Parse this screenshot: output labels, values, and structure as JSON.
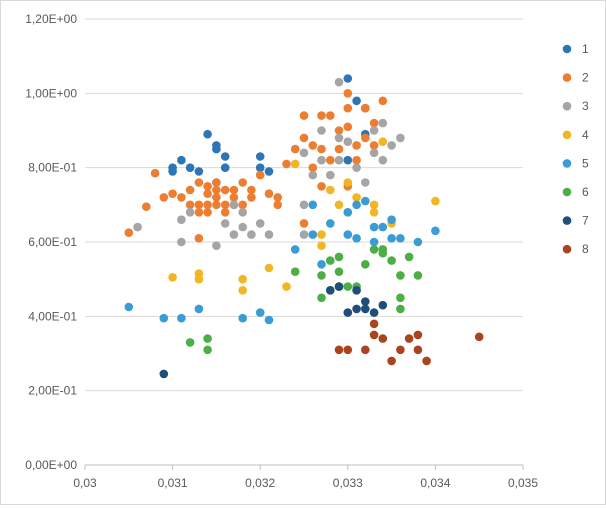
{
  "chart_data": {
    "type": "scatter",
    "title": "",
    "xlabel": "",
    "ylabel": "",
    "xlim": [
      0.03,
      0.035
    ],
    "ylim": [
      0.0,
      1.2
    ],
    "x_ticks": [
      0.03,
      0.031,
      0.032,
      0.033,
      0.034,
      0.035
    ],
    "x_tick_labels": [
      "0,03",
      "0,031",
      "0,032",
      "0,033",
      "0,034",
      "0,035"
    ],
    "y_ticks": [
      0.0,
      0.2,
      0.4,
      0.6,
      0.8,
      1.0,
      1.2
    ],
    "y_tick_labels": [
      "0,00E+00",
      "2,00E-01",
      "4,00E-01",
      "6,00E-01",
      "8,00E-01",
      "1,00E+00",
      "1,20E+00"
    ],
    "grid": "horizontal",
    "legend_position": "right",
    "series": [
      {
        "name": "1",
        "color": "#2e75b6",
        "points": [
          [
            0.031,
            0.79
          ],
          [
            0.031,
            0.8
          ],
          [
            0.0311,
            0.82
          ],
          [
            0.0312,
            0.8
          ],
          [
            0.0313,
            0.79
          ],
          [
            0.0314,
            0.89
          ],
          [
            0.0315,
            0.86
          ],
          [
            0.0315,
            0.85
          ],
          [
            0.0316,
            0.83
          ],
          [
            0.0316,
            0.8
          ],
          [
            0.0315,
            0.76
          ],
          [
            0.032,
            0.83
          ],
          [
            0.032,
            0.8
          ],
          [
            0.0321,
            0.79
          ],
          [
            0.033,
            1.04
          ],
          [
            0.0331,
            0.98
          ],
          [
            0.0332,
            0.96
          ],
          [
            0.0332,
            0.89
          ],
          [
            0.033,
            0.82
          ]
        ]
      },
      {
        "name": "2",
        "color": "#ed7d31",
        "points": [
          [
            0.0305,
            0.625
          ],
          [
            0.0307,
            0.695
          ],
          [
            0.0308,
            0.785
          ],
          [
            0.0309,
            0.72
          ],
          [
            0.031,
            0.73
          ],
          [
            0.0311,
            0.72
          ],
          [
            0.0312,
            0.7
          ],
          [
            0.0312,
            0.74
          ],
          [
            0.0313,
            0.76
          ],
          [
            0.0313,
            0.7
          ],
          [
            0.0313,
            0.68
          ],
          [
            0.0314,
            0.75
          ],
          [
            0.0314,
            0.73
          ],
          [
            0.0314,
            0.7
          ],
          [
            0.0314,
            0.68
          ],
          [
            0.0315,
            0.76
          ],
          [
            0.0315,
            0.74
          ],
          [
            0.0315,
            0.72
          ],
          [
            0.0315,
            0.7
          ],
          [
            0.0316,
            0.74
          ],
          [
            0.0316,
            0.7
          ],
          [
            0.0316,
            0.68
          ],
          [
            0.0317,
            0.74
          ],
          [
            0.0317,
            0.72
          ],
          [
            0.0317,
            0.7
          ],
          [
            0.0318,
            0.76
          ],
          [
            0.0318,
            0.7
          ],
          [
            0.0319,
            0.74
          ],
          [
            0.0319,
            0.72
          ],
          [
            0.032,
            0.78
          ],
          [
            0.0321,
            0.73
          ],
          [
            0.0322,
            0.72
          ],
          [
            0.0322,
            0.7
          ],
          [
            0.0323,
            0.81
          ],
          [
            0.0324,
            0.85
          ],
          [
            0.0325,
            0.88
          ],
          [
            0.0325,
            0.94
          ],
          [
            0.0326,
            0.86
          ],
          [
            0.0327,
            0.94
          ],
          [
            0.0327,
            0.85
          ],
          [
            0.0327,
            0.75
          ],
          [
            0.0328,
            0.94
          ],
          [
            0.0328,
            0.82
          ],
          [
            0.0329,
            0.9
          ],
          [
            0.0329,
            0.85
          ],
          [
            0.033,
            1.0
          ],
          [
            0.033,
            0.96
          ],
          [
            0.033,
            0.91
          ],
          [
            0.033,
            0.75
          ],
          [
            0.0331,
            0.86
          ],
          [
            0.0331,
            0.82
          ],
          [
            0.0332,
            0.96
          ],
          [
            0.0332,
            0.88
          ],
          [
            0.0333,
            0.92
          ],
          [
            0.0333,
            0.86
          ],
          [
            0.0334,
            0.98
          ],
          [
            0.0325,
            0.65
          ],
          [
            0.0313,
            0.61
          ],
          [
            0.0326,
            0.8
          ]
        ]
      },
      {
        "name": "3",
        "color": "#a5a5a5",
        "points": [
          [
            0.0306,
            0.64
          ],
          [
            0.0311,
            0.6
          ],
          [
            0.0311,
            0.66
          ],
          [
            0.0312,
            0.68
          ],
          [
            0.0315,
            0.59
          ],
          [
            0.0316,
            0.65
          ],
          [
            0.0317,
            0.62
          ],
          [
            0.0317,
            0.7
          ],
          [
            0.0318,
            0.68
          ],
          [
            0.0318,
            0.64
          ],
          [
            0.0319,
            0.62
          ],
          [
            0.032,
            0.65
          ],
          [
            0.0321,
            0.62
          ],
          [
            0.0325,
            0.84
          ],
          [
            0.0325,
            0.7
          ],
          [
            0.0326,
            0.78
          ],
          [
            0.0327,
            0.9
          ],
          [
            0.0327,
            0.82
          ],
          [
            0.0328,
            0.78
          ],
          [
            0.0329,
            1.03
          ],
          [
            0.0329,
            0.88
          ],
          [
            0.0329,
            0.82
          ],
          [
            0.033,
            0.87
          ],
          [
            0.0331,
            0.8
          ],
          [
            0.0332,
            0.76
          ],
          [
            0.0333,
            0.9
          ],
          [
            0.0333,
            0.84
          ],
          [
            0.0334,
            0.92
          ],
          [
            0.0334,
            0.82
          ],
          [
            0.0335,
            0.86
          ],
          [
            0.0336,
            0.88
          ],
          [
            0.0325,
            0.62
          ]
        ]
      },
      {
        "name": "4",
        "color": "#f2b624",
        "points": [
          [
            0.031,
            0.505
          ],
          [
            0.0313,
            0.515
          ],
          [
            0.0313,
            0.5
          ],
          [
            0.0318,
            0.47
          ],
          [
            0.0318,
            0.5
          ],
          [
            0.0321,
            0.53
          ],
          [
            0.0323,
            0.48
          ],
          [
            0.0324,
            0.81
          ],
          [
            0.0327,
            0.62
          ],
          [
            0.0327,
            0.59
          ],
          [
            0.0328,
            0.74
          ],
          [
            0.0329,
            0.7
          ],
          [
            0.033,
            0.76
          ],
          [
            0.033,
            0.68
          ],
          [
            0.0331,
            0.72
          ],
          [
            0.0333,
            0.7
          ],
          [
            0.0333,
            0.68
          ],
          [
            0.0334,
            0.87
          ],
          [
            0.0335,
            0.65
          ],
          [
            0.034,
            0.71
          ]
        ]
      },
      {
        "name": "5",
        "color": "#3a9bd5",
        "points": [
          [
            0.0305,
            0.425
          ],
          [
            0.0309,
            0.395
          ],
          [
            0.0311,
            0.395
          ],
          [
            0.0313,
            0.42
          ],
          [
            0.0318,
            0.395
          ],
          [
            0.032,
            0.41
          ],
          [
            0.0321,
            0.39
          ],
          [
            0.0324,
            0.58
          ],
          [
            0.0326,
            0.62
          ],
          [
            0.0326,
            0.7
          ],
          [
            0.0327,
            0.54
          ],
          [
            0.0328,
            0.65
          ],
          [
            0.033,
            0.68
          ],
          [
            0.033,
            0.62
          ],
          [
            0.0331,
            0.7
          ],
          [
            0.0331,
            0.61
          ],
          [
            0.0332,
            0.71
          ],
          [
            0.0333,
            0.64
          ],
          [
            0.0333,
            0.6
          ],
          [
            0.0334,
            0.64
          ],
          [
            0.0335,
            0.66
          ],
          [
            0.0335,
            0.61
          ],
          [
            0.0336,
            0.61
          ],
          [
            0.0338,
            0.6
          ],
          [
            0.034,
            0.63
          ]
        ]
      },
      {
        "name": "6",
        "color": "#4caf45",
        "points": [
          [
            0.0312,
            0.33
          ],
          [
            0.0314,
            0.34
          ],
          [
            0.0314,
            0.31
          ],
          [
            0.0324,
            0.52
          ],
          [
            0.0327,
            0.51
          ],
          [
            0.0327,
            0.45
          ],
          [
            0.0328,
            0.55
          ],
          [
            0.0328,
            0.47
          ],
          [
            0.0329,
            0.56
          ],
          [
            0.0329,
            0.52
          ],
          [
            0.0329,
            0.48
          ],
          [
            0.033,
            0.48
          ],
          [
            0.0331,
            0.48
          ],
          [
            0.0331,
            0.47
          ],
          [
            0.0332,
            0.54
          ],
          [
            0.0333,
            0.58
          ],
          [
            0.0334,
            0.58
          ],
          [
            0.0334,
            0.57
          ],
          [
            0.0335,
            0.55
          ],
          [
            0.0336,
            0.51
          ],
          [
            0.0336,
            0.45
          ],
          [
            0.0336,
            0.42
          ],
          [
            0.0337,
            0.56
          ],
          [
            0.0338,
            0.51
          ]
        ]
      },
      {
        "name": "7",
        "color": "#1f4e79",
        "points": [
          [
            0.0309,
            0.245
          ],
          [
            0.0328,
            0.47
          ],
          [
            0.0329,
            0.48
          ],
          [
            0.033,
            0.41
          ],
          [
            0.0331,
            0.42
          ],
          [
            0.0331,
            0.47
          ],
          [
            0.0332,
            0.42
          ],
          [
            0.0332,
            0.44
          ],
          [
            0.0333,
            0.41
          ],
          [
            0.0334,
            0.43
          ]
        ]
      },
      {
        "name": "8",
        "color": "#a9441e",
        "points": [
          [
            0.0329,
            0.31
          ],
          [
            0.033,
            0.31
          ],
          [
            0.0332,
            0.31
          ],
          [
            0.0333,
            0.38
          ],
          [
            0.0333,
            0.35
          ],
          [
            0.0334,
            0.34
          ],
          [
            0.0335,
            0.28
          ],
          [
            0.0336,
            0.31
          ],
          [
            0.0337,
            0.34
          ],
          [
            0.0338,
            0.35
          ],
          [
            0.0338,
            0.31
          ],
          [
            0.0339,
            0.28
          ],
          [
            0.0345,
            0.345
          ]
        ]
      }
    ]
  }
}
